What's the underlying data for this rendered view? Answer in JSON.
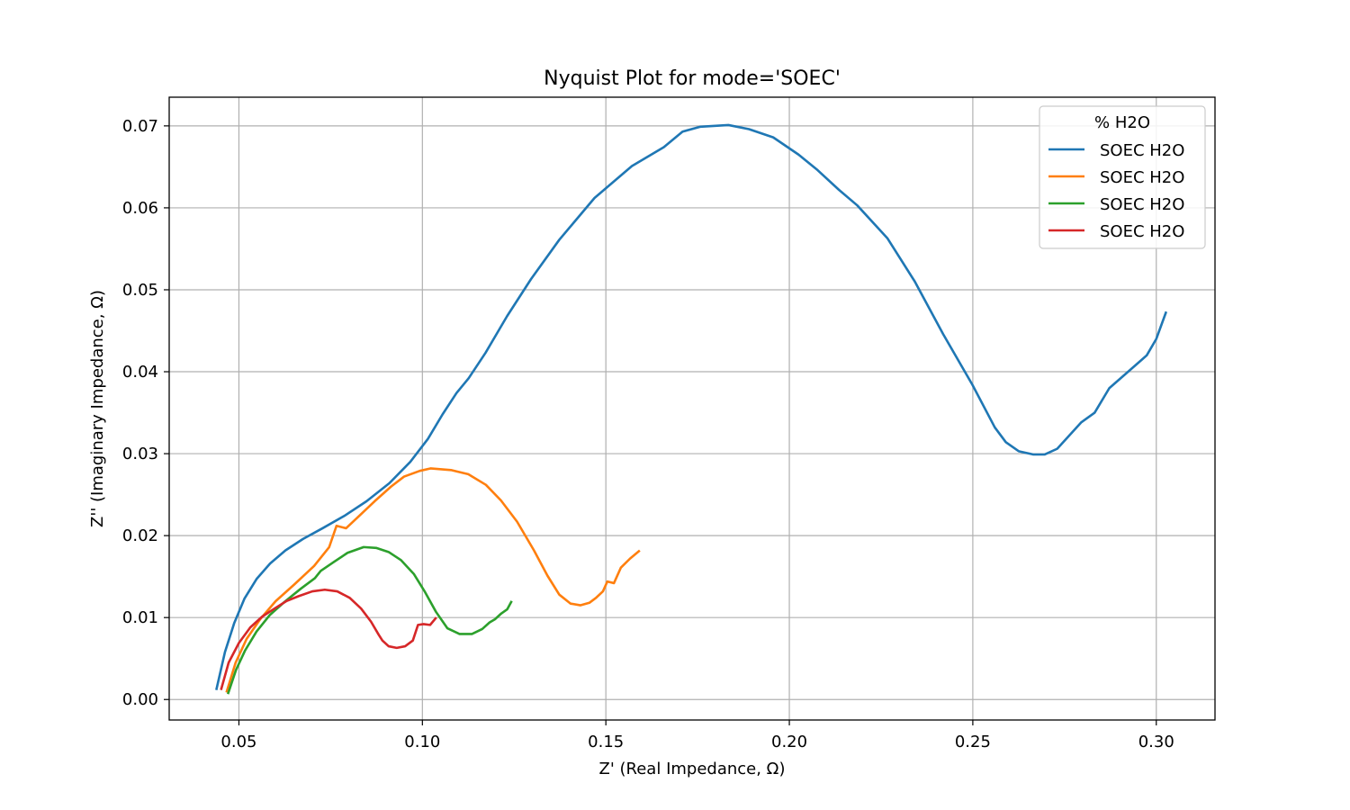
{
  "chart_data": {
    "type": "line",
    "title": "Nyquist Plot for mode='SOEC'",
    "xlabel": "Z' (Real Impedance, Ω)",
    "ylabel": "Z'' (Imaginary Impedance, Ω)",
    "xlim": [
      0.031,
      0.316
    ],
    "ylim": [
      -0.0025,
      0.0735
    ],
    "xticks": [
      0.05,
      0.1,
      0.15,
      0.2,
      0.25,
      0.3
    ],
    "xtick_labels": [
      "0.05",
      "0.10",
      "0.15",
      "0.20",
      "0.25",
      "0.30"
    ],
    "yticks": [
      0.0,
      0.01,
      0.02,
      0.03,
      0.04,
      0.05,
      0.06,
      0.07
    ],
    "ytick_labels": [
      "0.00",
      "0.01",
      "0.02",
      "0.03",
      "0.04",
      "0.05",
      "0.06",
      "0.07"
    ],
    "grid": true,
    "legend": {
      "title": "% H2O",
      "placement": "top-right"
    },
    "series": [
      {
        "name": "SOEC H2O",
        "color": "#1f77b4",
        "points": [
          [
            0.0439,
            0.0013
          ],
          [
            0.0462,
            0.0058
          ],
          [
            0.0487,
            0.0093
          ],
          [
            0.0515,
            0.0123
          ],
          [
            0.0548,
            0.0147
          ],
          [
            0.0585,
            0.0166
          ],
          [
            0.0627,
            0.0182
          ],
          [
            0.0675,
            0.0196
          ],
          [
            0.0728,
            0.0209
          ],
          [
            0.0787,
            0.0224
          ],
          [
            0.0848,
            0.0242
          ],
          [
            0.091,
            0.0264
          ],
          [
            0.0967,
            0.029
          ],
          [
            0.1015,
            0.0318
          ],
          [
            0.1055,
            0.0348
          ],
          [
            0.1093,
            0.0374
          ],
          [
            0.1126,
            0.0392
          ],
          [
            0.1172,
            0.0423
          ],
          [
            0.1231,
            0.0468
          ],
          [
            0.1296,
            0.0513
          ],
          [
            0.1373,
            0.0561
          ],
          [
            0.1469,
            0.0612
          ],
          [
            0.1571,
            0.0651
          ],
          [
            0.1658,
            0.0674
          ],
          [
            0.1709,
            0.0693
          ],
          [
            0.1758,
            0.0699
          ],
          [
            0.1834,
            0.0701
          ],
          [
            0.189,
            0.0696
          ],
          [
            0.1956,
            0.0686
          ],
          [
            0.2025,
            0.0665
          ],
          [
            0.2077,
            0.0646
          ],
          [
            0.2135,
            0.0622
          ],
          [
            0.2185,
            0.0603
          ],
          [
            0.2267,
            0.0563
          ],
          [
            0.2342,
            0.051
          ],
          [
            0.2419,
            0.0446
          ],
          [
            0.2499,
            0.0384
          ],
          [
            0.256,
            0.0332
          ],
          [
            0.259,
            0.0314
          ],
          [
            0.2625,
            0.0303
          ],
          [
            0.2665,
            0.0299
          ],
          [
            0.2696,
            0.0299
          ],
          [
            0.273,
            0.0306
          ],
          [
            0.2795,
            0.0338
          ],
          [
            0.2832,
            0.035
          ],
          [
            0.2872,
            0.038
          ],
          [
            0.2918,
            0.0398
          ],
          [
            0.2974,
            0.042
          ],
          [
            0.3,
            0.044
          ],
          [
            0.3026,
            0.0472
          ]
        ]
      },
      {
        "name": "SOEC H2O",
        "color": "#ff7f0e",
        "points": [
          [
            0.0467,
            0.001
          ],
          [
            0.0491,
            0.0045
          ],
          [
            0.0521,
            0.0074
          ],
          [
            0.0558,
            0.0098
          ],
          [
            0.06,
            0.012
          ],
          [
            0.065,
            0.014
          ],
          [
            0.0705,
            0.0163
          ],
          [
            0.0746,
            0.0186
          ],
          [
            0.0766,
            0.0212
          ],
          [
            0.0792,
            0.0209
          ],
          [
            0.0823,
            0.0222
          ],
          [
            0.087,
            0.0242
          ],
          [
            0.0915,
            0.026
          ],
          [
            0.095,
            0.0272
          ],
          [
            0.0993,
            0.0279
          ],
          [
            0.1022,
            0.0282
          ],
          [
            0.1078,
            0.028
          ],
          [
            0.1125,
            0.0275
          ],
          [
            0.1173,
            0.0262
          ],
          [
            0.1214,
            0.0243
          ],
          [
            0.1258,
            0.0217
          ],
          [
            0.1304,
            0.0182
          ],
          [
            0.1341,
            0.0151
          ],
          [
            0.1373,
            0.0128
          ],
          [
            0.1404,
            0.0117
          ],
          [
            0.1431,
            0.0115
          ],
          [
            0.1455,
            0.0118
          ],
          [
            0.1473,
            0.0124
          ],
          [
            0.1492,
            0.0132
          ],
          [
            0.1504,
            0.0144
          ],
          [
            0.1522,
            0.0142
          ],
          [
            0.1541,
            0.0161
          ],
          [
            0.1566,
            0.0172
          ],
          [
            0.159,
            0.0181
          ]
        ]
      },
      {
        "name": "SOEC H2O",
        "color": "#2ca02c",
        "points": [
          [
            0.0471,
            0.0008
          ],
          [
            0.0492,
            0.0036
          ],
          [
            0.0517,
            0.006
          ],
          [
            0.0548,
            0.0083
          ],
          [
            0.0584,
            0.0103
          ],
          [
            0.0624,
            0.0119
          ],
          [
            0.0668,
            0.0135
          ],
          [
            0.0707,
            0.0148
          ],
          [
            0.0723,
            0.0157
          ],
          [
            0.0759,
            0.0168
          ],
          [
            0.0796,
            0.0179
          ],
          [
            0.084,
            0.0186
          ],
          [
            0.0874,
            0.0185
          ],
          [
            0.0908,
            0.018
          ],
          [
            0.0942,
            0.017
          ],
          [
            0.0977,
            0.0153
          ],
          [
            0.1006,
            0.0132
          ],
          [
            0.1037,
            0.0107
          ],
          [
            0.1068,
            0.0087
          ],
          [
            0.1101,
            0.008
          ],
          [
            0.1135,
            0.008
          ],
          [
            0.1163,
            0.0086
          ],
          [
            0.1183,
            0.0094
          ],
          [
            0.1198,
            0.0098
          ],
          [
            0.1215,
            0.0105
          ],
          [
            0.1231,
            0.011
          ],
          [
            0.1242,
            0.0119
          ]
        ]
      },
      {
        "name": "SOEC H2O",
        "color": "#d62728",
        "points": [
          [
            0.0452,
            0.0013
          ],
          [
            0.0472,
            0.0045
          ],
          [
            0.05,
            0.0069
          ],
          [
            0.0531,
            0.0088
          ],
          [
            0.0563,
            0.0101
          ],
          [
            0.0597,
            0.0111
          ],
          [
            0.0629,
            0.012
          ],
          [
            0.0662,
            0.0126
          ],
          [
            0.07,
            0.0132
          ],
          [
            0.0734,
            0.0134
          ],
          [
            0.0768,
            0.0132
          ],
          [
            0.0802,
            0.0124
          ],
          [
            0.0833,
            0.0111
          ],
          [
            0.086,
            0.0095
          ],
          [
            0.0881,
            0.0079
          ],
          [
            0.0891,
            0.0072
          ],
          [
            0.0908,
            0.0065
          ],
          [
            0.093,
            0.0063
          ],
          [
            0.0953,
            0.0065
          ],
          [
            0.0974,
            0.0072
          ],
          [
            0.0988,
            0.0091
          ],
          [
            0.1003,
            0.0092
          ],
          [
            0.1021,
            0.0091
          ],
          [
            0.1036,
            0.0099
          ]
        ]
      }
    ]
  }
}
